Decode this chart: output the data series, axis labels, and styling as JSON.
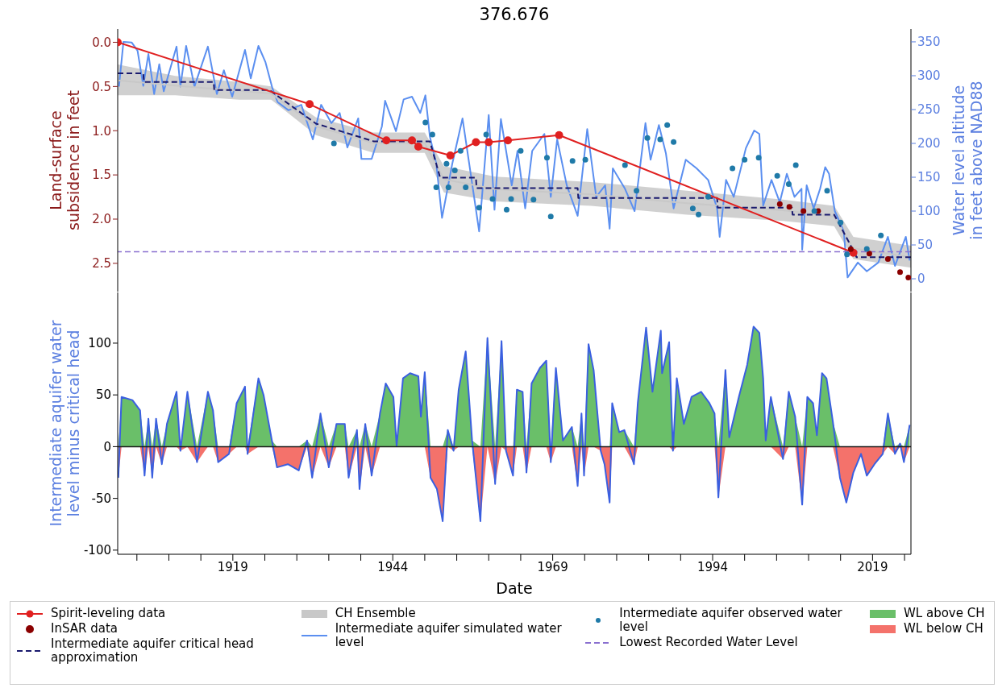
{
  "chart_data": [
    {
      "type": "line",
      "title": "376.676",
      "ylabel": "Land-surface subsidence in feet",
      "y2label": "Water level altitude in feet above NAD88",
      "xlim": [
        1901,
        2025
      ],
      "ylim": [
        2.82,
        -0.15
      ],
      "yticks": [
        {
          "value": 0,
          "label": "0.0"
        },
        {
          "value": 0.5,
          "label": "0.5"
        },
        {
          "value": 1,
          "label": "1.0"
        },
        {
          "value": 1.5,
          "label": "1.5"
        },
        {
          "value": 2,
          "label": "2.0"
        },
        {
          "value": 2.5,
          "label": "2.5"
        }
      ],
      "y2lim": [
        -19,
        369
      ],
      "y2ticks": [
        0,
        50,
        100,
        150,
        200,
        250,
        300,
        350
      ],
      "tick_labels": "y",
      "legend": "bottom",
      "ref_lines": [
        {
          "axis": "y2",
          "value": 40,
          "label": "Lowest Recorded Water Level",
          "color": "#8a70d0",
          "line_style": "dashed"
        }
      ],
      "series": [
        {
          "name": "Spirit-leveling data",
          "marker": "circle",
          "color": "#e02020",
          "x": [
            1901,
            1931,
            1943,
            1947,
            1948,
            1953,
            1957,
            1959,
            1962,
            1970,
            2016
          ],
          "values": [
            0,
            0.7,
            1.11,
            1.11,
            1.18,
            1.28,
            1.13,
            1.13,
            1.11,
            1.05,
            2.38
          ]
        },
        {
          "name": "InSAR data",
          "type": "scatter",
          "color": "#8b0000",
          "x": [
            2004.5,
            2006,
            2008.2,
            2010.5,
            2015.6,
            2018.5,
            2021.4,
            2023.3,
            2024.6
          ],
          "values": [
            1.83,
            1.86,
            1.91,
            1.91,
            2.34,
            2.39,
            2.45,
            2.6,
            2.66
          ]
        },
        {
          "name": "Intermediate aquifer critical head approximation",
          "line_style": "dashed",
          "color": "#1a1a6e",
          "x": [
            1901,
            1905,
            1905.1,
            1916,
            1916.1,
            1924.7,
            1932,
            1941,
            1949.8,
            1951.4,
            1957,
            1957.1,
            1972.9,
            1973,
            1994.7,
            1994.8,
            2006.4,
            2006.5,
            2013,
            2015.3,
            2016.5,
            2025
          ],
          "values": [
            0.35,
            0.35,
            0.45,
            0.45,
            0.54,
            0.54,
            0.92,
            1.12,
            1.12,
            1.53,
            1.53,
            1.65,
            1.65,
            1.76,
            1.76,
            1.87,
            1.87,
            1.95,
            1.95,
            2.26,
            2.43,
            2.43
          ]
        },
        {
          "name": "CH Ensemble",
          "color": "#c8c8c8",
          "x": [
            1901,
            1910,
            1920,
            1925,
            1932,
            1941,
            1949,
            1952,
            1960,
            1975,
            1990,
            2005,
            2013,
            2016,
            2025
          ],
          "values": [
            0.43,
            0.49,
            0.55,
            0.58,
            0.95,
            1.14,
            1.14,
            1.55,
            1.66,
            1.72,
            1.82,
            1.9,
            1.97,
            2.33,
            2.43
          ],
          "lower": [
            0.25,
            0.38,
            0.45,
            0.5,
            0.85,
            1.02,
            1.02,
            1.4,
            1.52,
            1.58,
            1.68,
            1.78,
            1.85,
            2.2,
            2.3
          ],
          "upper": [
            0.6,
            0.6,
            0.65,
            0.65,
            1.05,
            1.25,
            1.25,
            1.7,
            1.8,
            1.85,
            1.95,
            2.02,
            2.08,
            2.45,
            2.55
          ]
        },
        {
          "name": "Intermediate aquifer simulated water level",
          "axis": "y2",
          "color": "#5b8ff0",
          "x": [
            1901.2,
            1901.9,
            1903.2,
            1904.1,
            1905,
            1905.8,
            1906.7,
            1907.5,
            1908.2,
            1910.2,
            1910.8,
            1911.7,
            1913,
            1915.1,
            1916.5,
            1917.6,
            1918.9,
            1920.9,
            1921.8,
            1923,
            1924.1,
            1925.2,
            1926,
            1927.7,
            1929.7,
            1931.5,
            1932.8,
            1934.4,
            1935.7,
            1936.9,
            1938.6,
            1939.1,
            1940.7,
            1942.3,
            1942.8,
            1944.5,
            1945.7,
            1947,
            1948.3,
            1949.1,
            1949.8,
            1950.8,
            1951.7,
            1953.3,
            1954.9,
            1956.2,
            1957.5,
            1959,
            1959.9,
            1960.9,
            1962.6,
            1963.5,
            1964.7,
            1965.8,
            1967.7,
            1968.7,
            1969.7,
            1971.2,
            1972.9,
            1974.4,
            1975.8,
            1977.2,
            1977.9,
            1978.4,
            1980.3,
            1981.8,
            1983.5,
            1984.3,
            1985.6,
            1986.7,
            1987.9,
            1989.8,
            1991.5,
            1993.3,
            1994.7,
            1995.1,
            1996.1,
            1997.3,
            1999.2,
            2000.5,
            2001.3,
            2001.9,
            2003.2,
            2004.5,
            2005.6,
            2006.8,
            2007.9,
            2008,
            2008.7,
            2009.8,
            2010.8,
            2011.6,
            2012.2,
            2013.1,
            2014.5,
            2015.1,
            2016.7,
            2018.1,
            2019.9,
            2021.4,
            2022.5,
            2024.2,
            2024.8
          ],
          "values": [
            284,
            350,
            349,
            337,
            285,
            332,
            273,
            317,
            277,
            343,
            284,
            344,
            284,
            343,
            273,
            308,
            269,
            338,
            296,
            344,
            320,
            281,
            261,
            249,
            257,
            206,
            257,
            230,
            245,
            194,
            237,
            177,
            177,
            225,
            263,
            218,
            265,
            269,
            245,
            271,
            210,
            170,
            90,
            170,
            237,
            154,
            70,
            242,
            102,
            236,
            138,
            189,
            104,
            189,
            214,
            121,
            206,
            138,
            93,
            221,
            121,
            138,
            74,
            163,
            133,
            100,
            230,
            176,
            227,
            185,
            104,
            176,
            163,
            146,
            104,
            62,
            146,
            121,
            193,
            219,
            214,
            108,
            146,
            113,
            155,
            121,
            133,
            43,
            138,
            104,
            133,
            165,
            155,
            100,
            70,
            2,
            24,
            11,
            24,
            62,
            19,
            62,
            27
          ]
        },
        {
          "name": "Intermediate aquifer observed water level",
          "type": "scatter",
          "axis": "y2",
          "color": "#1f7aa8",
          "x": [
            1934.8,
            1949.1,
            1950.2,
            1950.8,
            1952.4,
            1952.7,
            1953.7,
            1954.6,
            1955.4,
            1957.5,
            1958.6,
            1959.6,
            1961.8,
            1962.5,
            1964,
            1966,
            1968.1,
            1968.7,
            1972.1,
            1974.1,
            1980.3,
            1982.1,
            1983.8,
            1985.8,
            1986.9,
            1987.9,
            1990.9,
            1991.8,
            1993.3,
            1997.1,
            1999,
            2001.2,
            2004.1,
            2005.9,
            2007,
            2009.9,
            2011.9,
            2014,
            2015,
            2018.1,
            2020.3
          ],
          "values": [
            200,
            231,
            213,
            135,
            170,
            135,
            160,
            189,
            135,
            105,
            213,
            118,
            102,
            118,
            189,
            117,
            179,
            92,
            174,
            176,
            168,
            130,
            208,
            206,
            227,
            202,
            104,
            95,
            121,
            163,
            176,
            179,
            152,
            140,
            168,
            100,
            130,
            83,
            36,
            44,
            64
          ]
        }
      ]
    },
    {
      "type": "area",
      "xlabel": "Date",
      "ylabel": "Intermediate aquifer water level minus critical head",
      "xlim": [
        1901,
        2025
      ],
      "xticks": [
        {
          "value": 1904,
          "label": null
        },
        {
          "value": 1909,
          "label": null
        },
        {
          "value": 1914,
          "label": null
        },
        1919,
        {
          "value": 1924,
          "label": null
        },
        {
          "value": 1929,
          "label": null
        },
        {
          "value": 1934,
          "label": null
        },
        {
          "value": 1939,
          "label": null
        },
        1944,
        {
          "value": 1949,
          "label": null
        },
        {
          "value": 1954,
          "label": null
        },
        {
          "value": 1959,
          "label": null
        },
        {
          "value": 1964,
          "label": null
        },
        1969,
        {
          "value": 1974,
          "label": null
        },
        {
          "value": 1979,
          "label": null
        },
        {
          "value": 1984,
          "label": null
        },
        {
          "value": 1989,
          "label": null
        },
        1994,
        {
          "value": 1999,
          "label": null
        },
        {
          "value": 2004,
          "label": null
        },
        {
          "value": 2009,
          "label": null
        },
        {
          "value": 2014,
          "label": null
        },
        2019,
        {
          "value": 2024,
          "label": null
        }
      ],
      "ylim": [
        -104,
        149
      ],
      "yticks": [
        -100,
        -50,
        0,
        50,
        100
      ],
      "legend": "bottom",
      "ref_lines": [
        {
          "axis": "y",
          "value": 0,
          "color": "#1a1a1a"
        }
      ],
      "x": [
        1901.1,
        1901.6,
        1903.3,
        1904.5,
        1905.2,
        1905.8,
        1906.4,
        1907,
        1907.9,
        1908.7,
        1910.2,
        1910.8,
        1911.9,
        1913.4,
        1915.1,
        1915.9,
        1916.7,
        1918.4,
        1919.6,
        1920.9,
        1921.3,
        1923,
        1923.8,
        1925.1,
        1925.9,
        1927.6,
        1929.3,
        1930.6,
        1931.4,
        1932.7,
        1934,
        1935.2,
        1936.5,
        1937.1,
        1938.4,
        1938.8,
        1939.7,
        1940.7,
        1942,
        1942.9,
        1944.1,
        1944.6,
        1945.6,
        1946.7,
        1948,
        1948.4,
        1949,
        1949.9,
        1950.9,
        1951.8,
        1952.6,
        1953.5,
        1954.3,
        1955.4,
        1956.4,
        1957.7,
        1958.8,
        1960,
        1961,
        1961.7,
        1962.8,
        1963.4,
        1964.3,
        1964.9,
        1965.7,
        1967,
        1968,
        1968.7,
        1969.5,
        1970.6,
        1972,
        1972.9,
        1973.5,
        1973.9,
        1974.6,
        1975.4,
        1976.5,
        1977.1,
        1977.9,
        1978.3,
        1979.4,
        1980.2,
        1981.7,
        1982.3,
        1983.6,
        1984.6,
        1985.9,
        1986.1,
        1987.2,
        1987.8,
        1988.4,
        1989.5,
        1990.7,
        1992.2,
        1993.5,
        1994.3,
        1994.9,
        1996,
        1996.6,
        1998.1,
        1999.4,
        2000.4,
        2001.3,
        2001.9,
        2002.3,
        2003.1,
        2005,
        2005.9,
        2006.9,
        2008,
        2008.8,
        2009.7,
        2010.3,
        2011.1,
        2011.8,
        2012.8,
        2013.9,
        2014.9,
        2016,
        2017.2,
        2018.1,
        2019.3,
        2020.6,
        2021.4,
        2022.5,
        2023.3,
        2023.9,
        2024.8
      ],
      "series": [
        {
          "name": "WL above CH",
          "color": "#6abf69",
          "values": [
            0,
            48,
            45,
            35,
            0,
            27,
            0,
            27,
            0,
            22,
            53,
            0,
            53,
            0,
            53,
            35,
            0,
            0,
            42,
            58,
            0,
            66,
            50,
            6,
            0,
            0,
            0,
            6,
            0,
            32,
            0,
            22,
            22,
            0,
            16,
            0,
            22,
            0,
            32,
            61,
            48,
            1,
            66,
            71,
            68,
            29,
            72,
            0,
            0,
            0,
            16,
            0,
            55,
            92,
            6,
            0,
            105,
            0,
            102,
            0,
            0,
            55,
            53,
            0,
            61,
            76,
            83,
            0,
            76,
            6,
            19,
            0,
            32,
            0,
            99,
            74,
            0,
            0,
            0,
            42,
            14,
            16,
            0,
            42,
            115,
            53,
            112,
            71,
            101,
            0,
            66,
            22,
            48,
            53,
            42,
            32,
            0,
            74,
            9,
            48,
            79,
            116,
            110,
            66,
            6,
            48,
            0,
            53,
            29,
            0,
            48,
            42,
            11,
            71,
            66,
            24,
            0,
            0,
            0,
            0,
            0,
            0,
            0,
            32,
            0,
            3,
            0,
            21
          ]
        },
        {
          "name": "WL below CH",
          "color": "#f4726b",
          "values": [
            -30,
            0,
            0,
            0,
            -28,
            0,
            -30,
            0,
            -17,
            0,
            0,
            -4,
            0,
            -15,
            0,
            0,
            -15,
            -7,
            0,
            0,
            -7,
            0,
            0,
            0,
            -20,
            -17,
            -23,
            0,
            -30,
            0,
            -20,
            0,
            0,
            -30,
            0,
            -41,
            0,
            -28,
            0,
            0,
            0,
            0,
            0,
            0,
            0,
            0,
            0,
            -30,
            -41,
            -72,
            0,
            -4,
            0,
            0,
            0,
            -72,
            0,
            -36,
            0,
            -4,
            -28,
            0,
            0,
            -25,
            0,
            0,
            0,
            -15,
            0,
            0,
            0,
            -38,
            0,
            -28,
            0,
            0,
            -4,
            -17,
            -54,
            0,
            0,
            0,
            -17,
            0,
            0,
            0,
            0,
            0,
            0,
            -4,
            0,
            0,
            0,
            0,
            0,
            0,
            -49,
            0,
            0,
            0,
            0,
            0,
            0,
            0,
            0,
            0,
            -12,
            0,
            0,
            -56,
            0,
            0,
            0,
            0,
            0,
            0,
            -30,
            -54,
            -25,
            -7,
            -28,
            -17,
            -7,
            0,
            -7,
            0,
            -15,
            0
          ]
        },
        {
          "type": "line",
          "color": "#3a5fe0",
          "values": [
            -30,
            48,
            45,
            35,
            -28,
            27,
            -30,
            27,
            -17,
            22,
            53,
            -4,
            53,
            -15,
            53,
            35,
            -15,
            -7,
            42,
            58,
            -7,
            66,
            50,
            6,
            -20,
            -17,
            -23,
            6,
            -30,
            32,
            -20,
            22,
            22,
            -30,
            16,
            -41,
            22,
            -28,
            32,
            61,
            48,
            1,
            66,
            71,
            68,
            29,
            72,
            -30,
            -41,
            -72,
            16,
            -4,
            55,
            92,
            6,
            -72,
            105,
            -36,
            102,
            -4,
            -28,
            55,
            53,
            -25,
            61,
            76,
            83,
            -15,
            76,
            6,
            19,
            -38,
            32,
            -28,
            99,
            74,
            -4,
            -17,
            -54,
            42,
            14,
            16,
            -17,
            42,
            115,
            53,
            112,
            71,
            101,
            -4,
            66,
            22,
            48,
            53,
            42,
            32,
            -49,
            74,
            9,
            48,
            79,
            116,
            110,
            66,
            6,
            48,
            -12,
            53,
            29,
            -56,
            48,
            42,
            11,
            71,
            66,
            24,
            -30,
            -54,
            -25,
            -7,
            -28,
            -17,
            -7,
            32,
            -7,
            3,
            -15,
            21
          ]
        }
      ]
    }
  ]
}
